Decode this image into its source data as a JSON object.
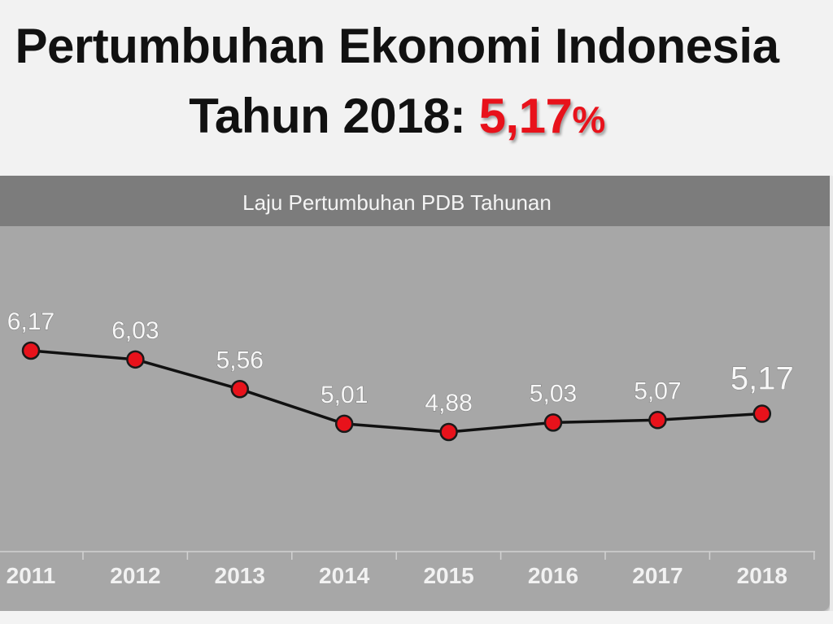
{
  "headline": {
    "line1": "Pertumbuhan Ekonomi Indonesia",
    "line2_prefix": "Tahun 2018: ",
    "highlight_value": "5,17",
    "highlight_unit": "%"
  },
  "colors": {
    "highlight": "#e8121b",
    "marker": "#e8121b",
    "line": "#111111",
    "panel": "#a7a7a7",
    "header": "#7c7c7c"
  },
  "chart_data": {
    "type": "line",
    "title": "Laju Pertumbuhan PDB Tahunan",
    "xlabel": "",
    "ylabel": "",
    "categories": [
      "2011",
      "2012",
      "2013",
      "2014",
      "2015",
      "2016",
      "2017",
      "2018"
    ],
    "values": [
      6.17,
      6.03,
      5.56,
      5.01,
      4.88,
      5.03,
      5.07,
      5.17
    ],
    "data_labels": [
      "6,17",
      "6,03",
      "5,56",
      "5,01",
      "4,88",
      "5,03",
      "5,07",
      "5,17"
    ],
    "grid": false,
    "legend": "none"
  }
}
